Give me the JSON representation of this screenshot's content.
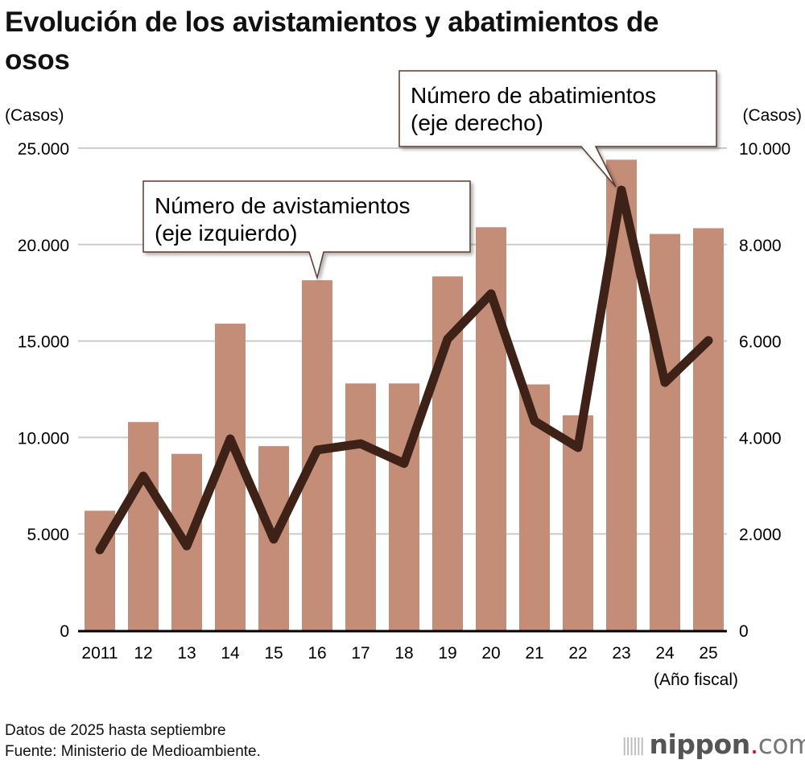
{
  "title": "Evolución de los avistamientos y abatimientos de osos",
  "notes": [
    "Datos de 2025 hasta septiembre",
    "Fuente: Ministerio de Medioambiente."
  ],
  "logo": {
    "name": "nippon",
    "dot": ".",
    "tld": "com"
  },
  "colors": {
    "bars": "#c48d78",
    "line": "#3e2117",
    "grid": "#cccccc"
  },
  "chart_data": {
    "type": "bar+line",
    "categories": [
      "2011",
      "12",
      "13",
      "14",
      "15",
      "16",
      "17",
      "18",
      "19",
      "20",
      "21",
      "22",
      "23",
      "24",
      "25"
    ],
    "xlabel": "(Año fiscal)",
    "ylabel_left": "(Casos)",
    "ylabel_right": "(Casos)",
    "ylim_left": [
      0,
      25000
    ],
    "ylim_right": [
      0,
      10000
    ],
    "yticks_left": [
      "0",
      "5.000",
      "10.000",
      "15.000",
      "20.000",
      "25.000"
    ],
    "yticks_right": [
      "0",
      "2.000",
      "4.000",
      "6.000",
      "8.000",
      "10.000"
    ],
    "grid": true,
    "series": [
      {
        "name": "Número de avistamientos (eje izquierdo)",
        "label_lines": [
          "Número de avistamientos",
          "(eje izquierdo)"
        ],
        "type": "bar",
        "axis": "left",
        "values": [
          6200,
          10800,
          9150,
          15900,
          9550,
          18150,
          12800,
          12800,
          18350,
          20900,
          12750,
          11150,
          24400,
          20550,
          20850
        ]
      },
      {
        "name": "Número de abatimientos (eje derecho)",
        "label_lines": [
          "Número de abatimientos",
          "(eje derecho)"
        ],
        "type": "line",
        "axis": "right",
        "values": [
          1670,
          3200,
          1750,
          3970,
          1890,
          3740,
          3870,
          3460,
          6040,
          6980,
          4340,
          3790,
          9130,
          5140,
          6010
        ]
      }
    ]
  }
}
